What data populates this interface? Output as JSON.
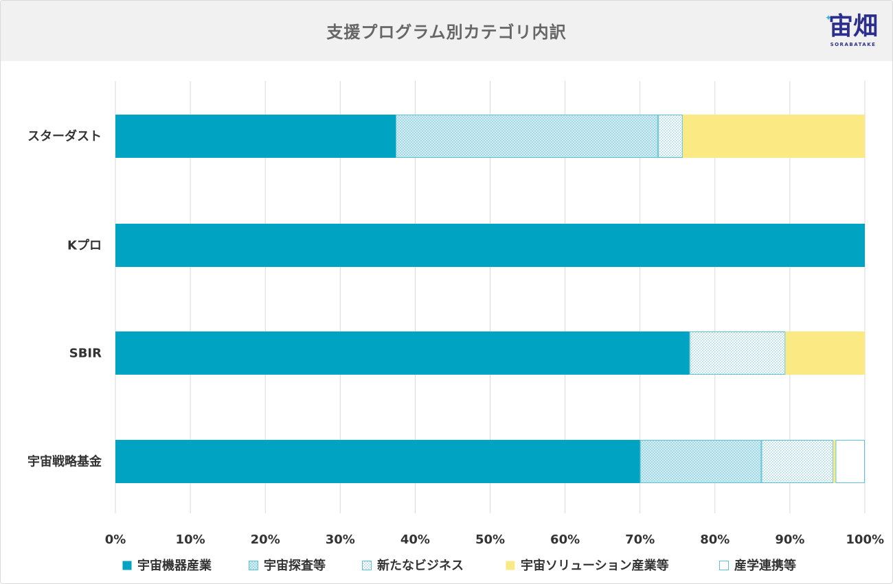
{
  "header": {
    "title": "支援プログラム別カテゴリ内訳",
    "logo_text": "宙畑",
    "logo_subtext": "SORABATAKE"
  },
  "chart_data": {
    "type": "bar",
    "orientation": "horizontal",
    "stacked": true,
    "title": "支援プログラム別カテゴリ内訳",
    "xlabel": "",
    "ylabel": "",
    "xlim": [
      0,
      100
    ],
    "x_ticks": [
      "0%",
      "10%",
      "20%",
      "30%",
      "40%",
      "50%",
      "60%",
      "70%",
      "80%",
      "90%",
      "100%"
    ],
    "grid": "vertical",
    "legend_position": "bottom",
    "categories": [
      "スターダスト",
      "Kプロ",
      "SBIR",
      "宇宙戦略基金"
    ],
    "series": [
      {
        "name": "宇宙機器産業",
        "color": "#00a3c1",
        "pattern": "solid",
        "values": [
          37.4,
          100,
          76.6,
          70.0
        ]
      },
      {
        "name": "宇宙探査等",
        "color": "#bce4ec",
        "pattern": "checker",
        "values": [
          35.0,
          0,
          0,
          16.2
        ]
      },
      {
        "name": "新たなビジネス",
        "color": "#e8f5f8",
        "pattern": "dots",
        "values": [
          3.3,
          0,
          12.8,
          9.6
        ]
      },
      {
        "name": "宇宙ソリューション産業等",
        "color": "#fbe983",
        "pattern": "solid",
        "values": [
          24.3,
          0,
          10.6,
          0.3
        ]
      },
      {
        "name": "産学連携等",
        "color": "#ffffff",
        "pattern": "outline",
        "values": [
          0,
          0,
          0,
          3.9
        ]
      }
    ]
  }
}
